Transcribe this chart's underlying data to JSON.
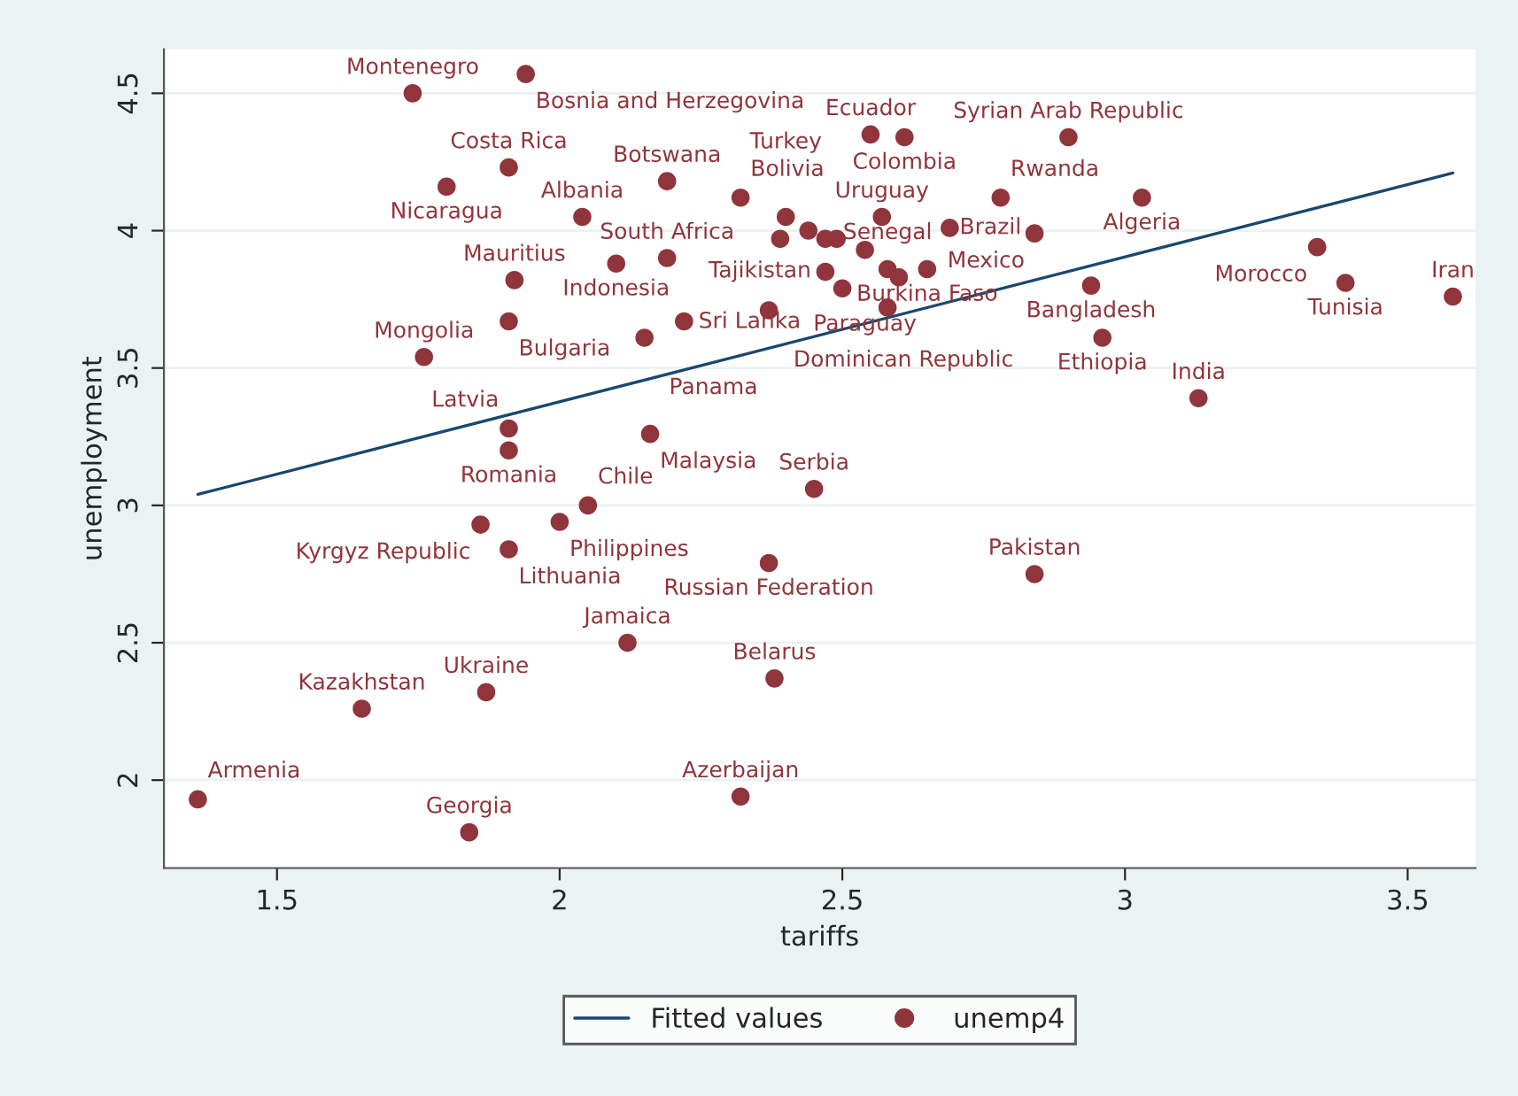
{
  "chart_data": {
    "type": "scatter",
    "xlabel": "tariffs",
    "ylabel": "unemployment",
    "xlim": [
      1.3,
      3.62
    ],
    "ylim": [
      1.68,
      4.66
    ],
    "xticks": [
      1.5,
      2,
      2.5,
      3,
      3.5
    ],
    "yticks": [
      2,
      2.5,
      3,
      3.5,
      4,
      4.5
    ],
    "grid": "y",
    "legend": "bottom",
    "marker": "circle",
    "series": [
      {
        "name": "Fitted values",
        "type": "line",
        "color": "#1a476f",
        "line_style": "solid",
        "marker": "none",
        "x": [
          1.36,
          3.58
        ],
        "values": [
          3.04,
          4.21
        ]
      },
      {
        "name": "unemp4",
        "color": "#90353b",
        "x": [
          1.36,
          1.74,
          1.94,
          1.65,
          1.91,
          1.8,
          1.87,
          1.84,
          1.76,
          1.91,
          1.92,
          1.91,
          1.91,
          1.86,
          1.91,
          2.0,
          2.05,
          2.04,
          2.19,
          2.1,
          2.19,
          2.15,
          2.16,
          2.22,
          2.12,
          2.32,
          2.32,
          2.37,
          2.38,
          2.45,
          2.55,
          2.61,
          2.9,
          2.78,
          3.03,
          2.84,
          3.34,
          3.39,
          3.58,
          2.94,
          2.96,
          3.13,
          2.84,
          2.4,
          2.39,
          2.44,
          2.47,
          2.49,
          2.57,
          2.54,
          2.69,
          2.47,
          2.5,
          2.58,
          2.6,
          2.65,
          2.37,
          2.58
        ],
        "values": [
          1.93,
          4.5,
          4.57,
          2.26,
          4.23,
          4.16,
          2.32,
          1.81,
          3.54,
          3.67,
          3.82,
          3.28,
          3.2,
          2.93,
          2.84,
          2.94,
          3.0,
          4.05,
          4.18,
          3.88,
          3.9,
          3.61,
          3.26,
          3.67,
          2.5,
          4.12,
          1.94,
          2.79,
          2.37,
          3.06,
          4.35,
          4.34,
          4.34,
          4.12,
          4.12,
          3.99,
          3.94,
          3.81,
          3.76,
          3.8,
          3.61,
          3.39,
          2.75,
          4.05,
          3.97,
          4.0,
          3.97,
          3.97,
          4.05,
          3.93,
          4.01,
          3.85,
          3.79,
          3.86,
          3.83,
          3.86,
          3.71,
          3.72
        ]
      }
    ],
    "annotations": [
      {
        "text": "Armenia",
        "x": 1.36,
        "y": 1.93
      },
      {
        "text": "Montenegro",
        "x": 1.74,
        "y": 4.5
      },
      {
        "text": "Bosnia and Herzegovina",
        "x": 1.94,
        "y": 4.57
      },
      {
        "text": "Kazakhstan",
        "x": 1.65,
        "y": 2.26
      },
      {
        "text": "Costa Rica",
        "x": 1.91,
        "y": 4.23
      },
      {
        "text": "Nicaragua",
        "x": 1.8,
        "y": 4.16
      },
      {
        "text": "Ukraine",
        "x": 1.87,
        "y": 2.32
      },
      {
        "text": "Georgia",
        "x": 1.84,
        "y": 1.81
      },
      {
        "text": "Mongolia",
        "x": 1.76,
        "y": 3.54
      },
      {
        "text": "Bulgaria",
        "x": 1.91,
        "y": 3.67
      },
      {
        "text": "Mauritius",
        "x": 1.92,
        "y": 3.82
      },
      {
        "text": "Latvia",
        "x": 1.91,
        "y": 3.28
      },
      {
        "text": "Romania",
        "x": 1.91,
        "y": 3.2
      },
      {
        "text": "Kyrgyz Republic",
        "x": 1.86,
        "y": 2.93
      },
      {
        "text": "Lithuania",
        "x": 1.91,
        "y": 2.84
      },
      {
        "text": "Philippines",
        "x": 2.0,
        "y": 2.94
      },
      {
        "text": "Chile",
        "x": 2.05,
        "y": 3.0
      },
      {
        "text": "Albania",
        "x": 2.04,
        "y": 4.05
      },
      {
        "text": "Botswana",
        "x": 2.19,
        "y": 4.18
      },
      {
        "text": "Indonesia",
        "x": 2.1,
        "y": 3.88
      },
      {
        "text": "South Africa",
        "x": 2.19,
        "y": 3.9
      },
      {
        "text": "Panama",
        "x": 2.15,
        "y": 3.61
      },
      {
        "text": "Malaysia",
        "x": 2.16,
        "y": 3.26
      },
      {
        "text": "Tajikistan",
        "x": 2.22,
        "y": 3.67
      },
      {
        "text": "Jamaica",
        "x": 2.12,
        "y": 2.5
      },
      {
        "text": "Bolivia",
        "x": 2.32,
        "y": 4.12
      },
      {
        "text": "Azerbaijan",
        "x": 2.32,
        "y": 1.94
      },
      {
        "text": "Russian Federation",
        "x": 2.37,
        "y": 2.79
      },
      {
        "text": "Belarus",
        "x": 2.38,
        "y": 2.37
      },
      {
        "text": "Serbia",
        "x": 2.45,
        "y": 3.06
      },
      {
        "text": "Ecuador",
        "x": 2.55,
        "y": 4.35
      },
      {
        "text": "Colombia",
        "x": 2.61,
        "y": 4.34
      },
      {
        "text": "Syrian Arab Republic",
        "x": 2.9,
        "y": 4.34
      },
      {
        "text": "Rwanda",
        "x": 2.78,
        "y": 4.12
      },
      {
        "text": "Algeria",
        "x": 3.03,
        "y": 4.12
      },
      {
        "text": "Mexico",
        "x": 2.84,
        "y": 3.99
      },
      {
        "text": "Morocco",
        "x": 3.34,
        "y": 3.94
      },
      {
        "text": "Tunisia",
        "x": 3.39,
        "y": 3.81
      },
      {
        "text": "Iran",
        "x": 3.58,
        "y": 3.76
      },
      {
        "text": "Bangladesh",
        "x": 2.94,
        "y": 3.8
      },
      {
        "text": "Ethiopia",
        "x": 2.96,
        "y": 3.61
      },
      {
        "text": "India",
        "x": 3.13,
        "y": 3.39
      },
      {
        "text": "Pakistan",
        "x": 2.84,
        "y": 2.75
      },
      {
        "text": "Turkey",
        "x": 2.4,
        "y": 4.05
      },
      {
        "text": "Uruguay",
        "x": 2.57,
        "y": 4.05
      },
      {
        "text": "Paraguay",
        "x": 2.54,
        "y": 3.93
      },
      {
        "text": "Brazil",
        "x": 2.69,
        "y": 4.01
      },
      {
        "text": "Sri Lanka",
        "x": 2.47,
        "y": 3.85
      },
      {
        "text": "Burkina Faso",
        "x": 2.65,
        "y": 3.86
      },
      {
        "text": "Dominican Republic",
        "x": 2.37,
        "y": 3.71
      },
      {
        "text": "Senegal",
        "x": 2.58,
        "y": 3.72
      }
    ]
  }
}
